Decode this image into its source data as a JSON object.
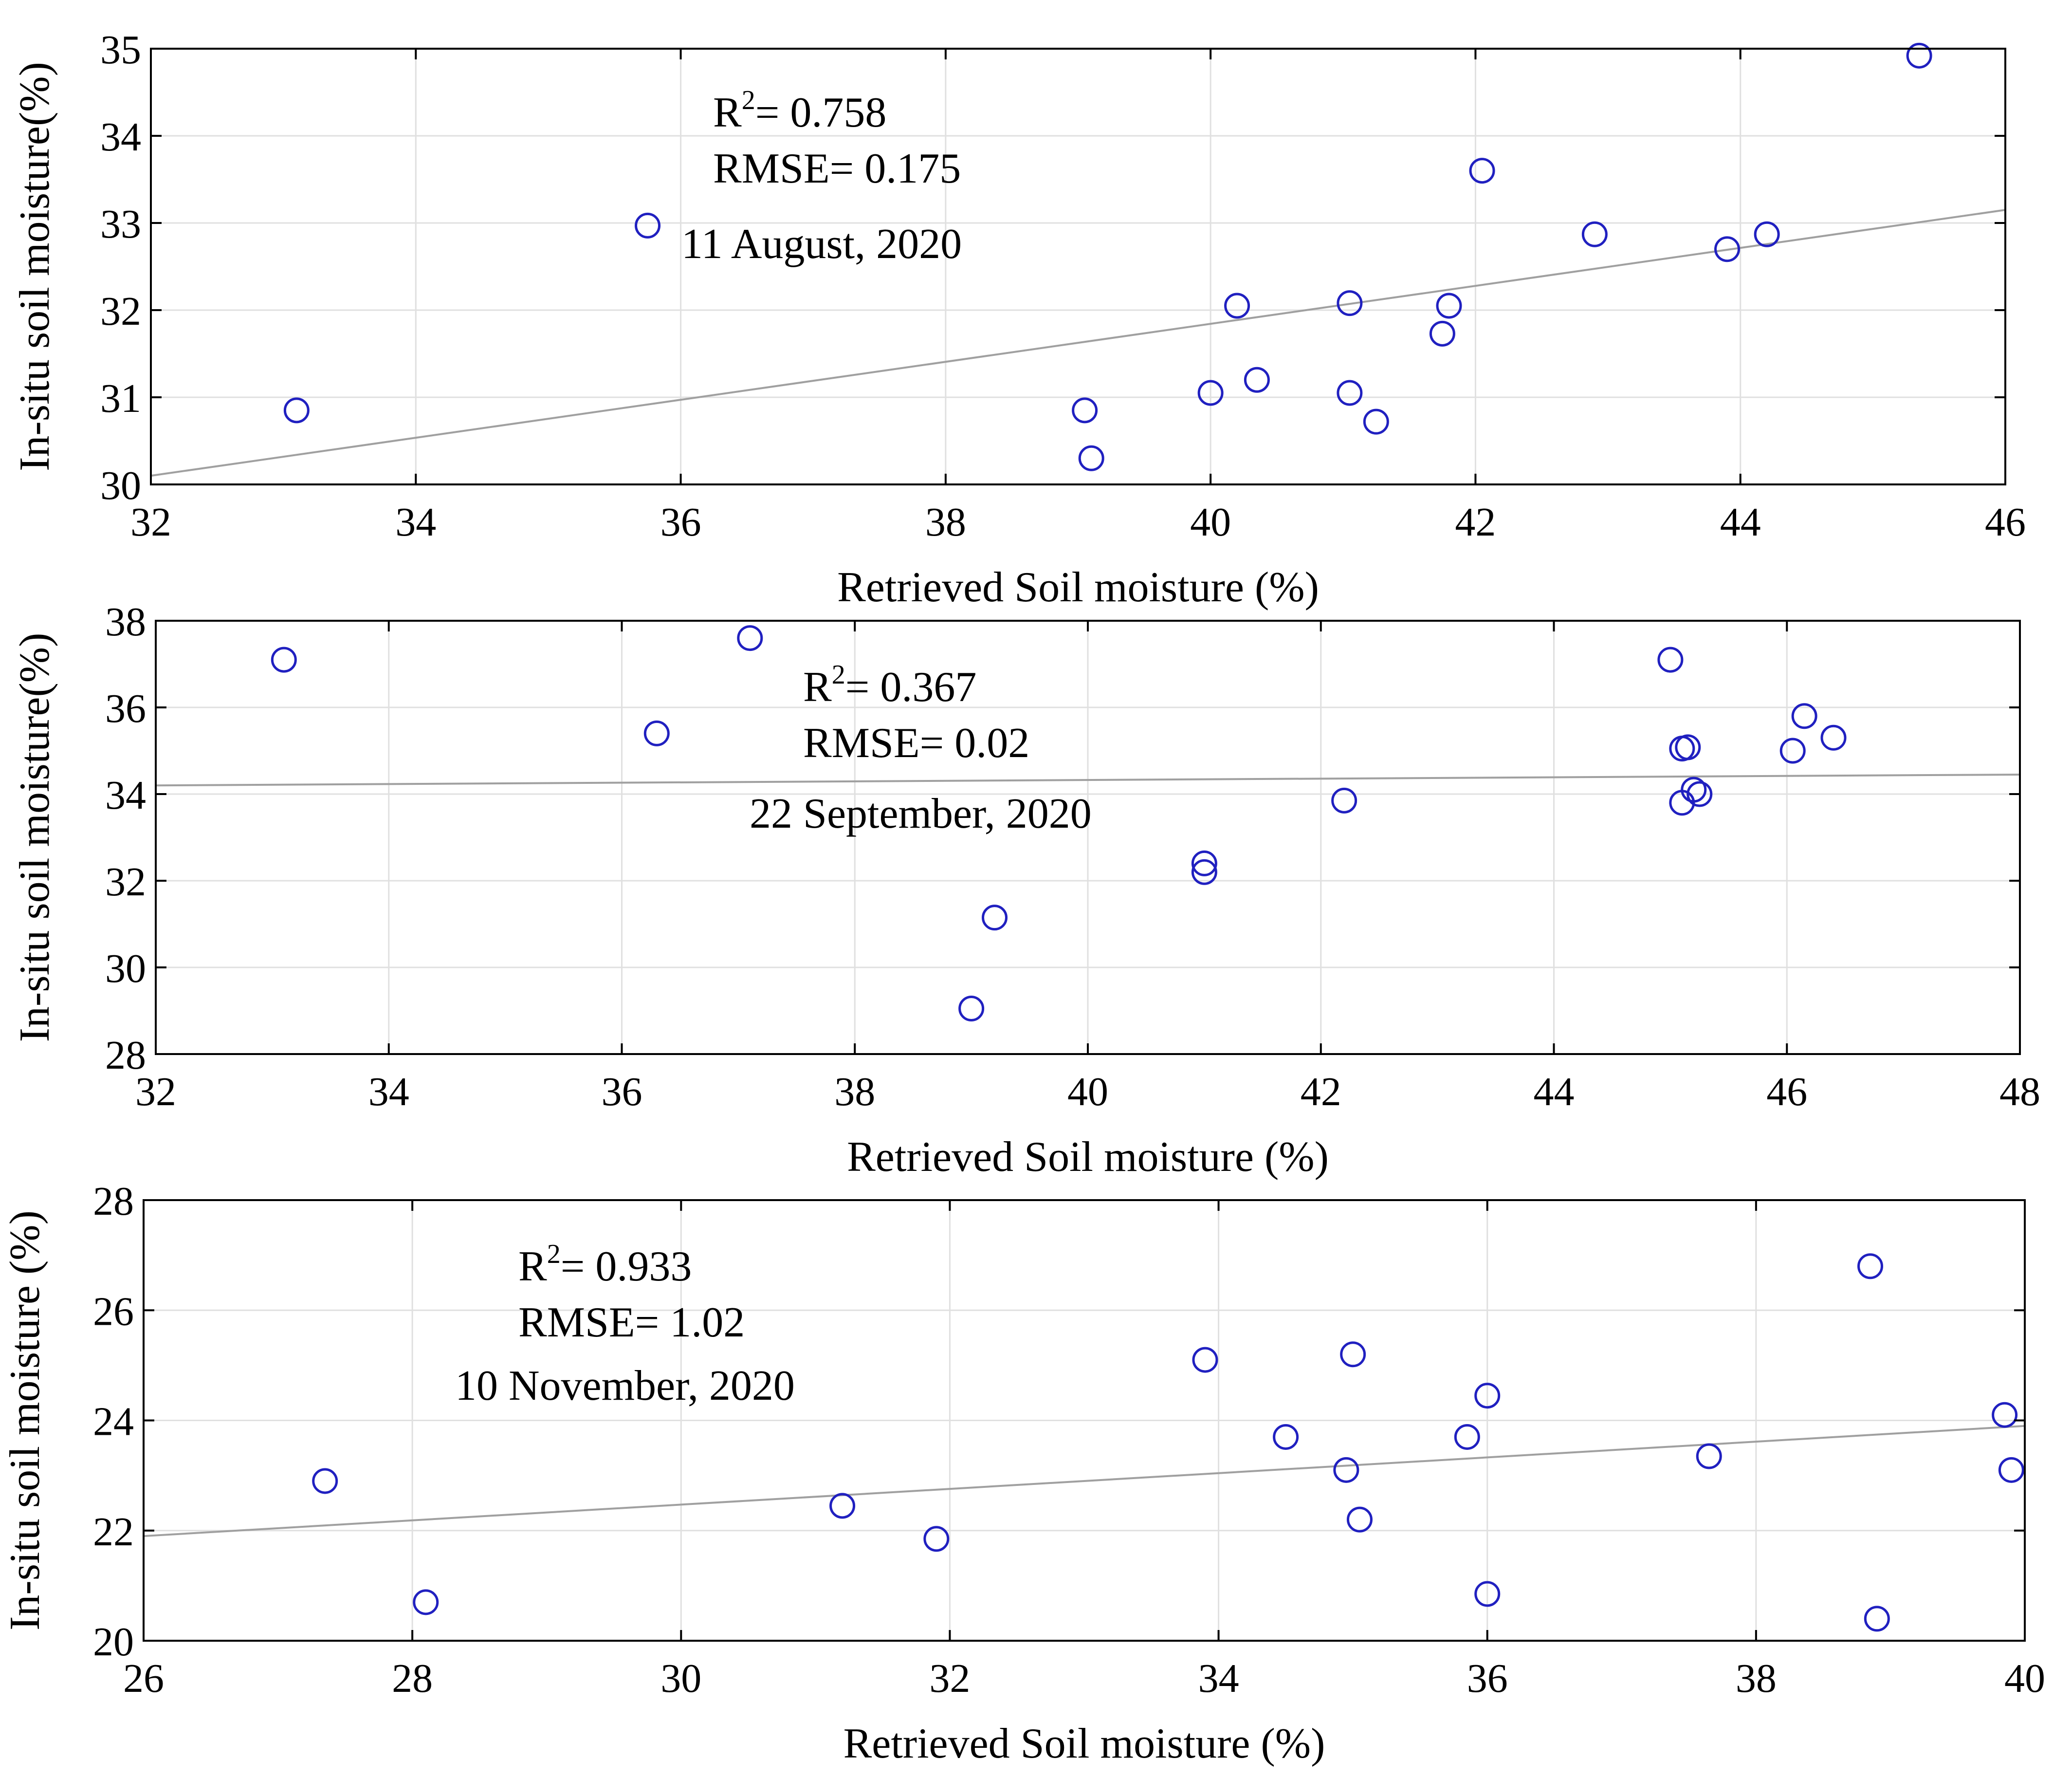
{
  "colors": {
    "marker": "#2020c0",
    "fit_line": "#a0a0a0",
    "grid": "#e0e0e0",
    "axis": "#000000"
  },
  "chart_data": [
    {
      "type": "scatter",
      "xlabel": "Retrieved Soil moisture (%)",
      "ylabel": "In-situ soil moisture(%)",
      "xlim": [
        32,
        46
      ],
      "ylim": [
        30,
        35
      ],
      "xticks": [
        32,
        34,
        36,
        38,
        40,
        42,
        44,
        46
      ],
      "yticks": [
        30,
        31,
        32,
        33,
        34,
        35
      ],
      "grid": true,
      "annotations": {
        "r2_label": "R",
        "r2_sup": "2",
        "r2_value": "= 0.758",
        "rmse": "RMSE= 0.175",
        "date": "11 August, 2020"
      },
      "fit_line": {
        "x": [
          32,
          46
        ],
        "y": [
          30.1,
          33.15
        ]
      },
      "points": [
        [
          33.1,
          30.85
        ],
        [
          35.75,
          32.97
        ],
        [
          39.05,
          30.85
        ],
        [
          39.1,
          30.3
        ],
        [
          40.0,
          31.05
        ],
        [
          40.2,
          32.05
        ],
        [
          40.35,
          31.2
        ],
        [
          41.05,
          31.05
        ],
        [
          41.05,
          32.08
        ],
        [
          41.25,
          30.72
        ],
        [
          41.75,
          31.73
        ],
        [
          41.8,
          32.05
        ],
        [
          42.05,
          33.6
        ],
        [
          42.9,
          32.87
        ],
        [
          43.9,
          32.7
        ],
        [
          44.2,
          32.87
        ],
        [
          45.35,
          34.92
        ]
      ]
    },
    {
      "type": "scatter",
      "xlabel": "Retrieved Soil moisture (%)",
      "ylabel": "In-situ soil moisture(%)",
      "xlim": [
        32,
        48
      ],
      "ylim": [
        28,
        38
      ],
      "xticks": [
        32,
        34,
        36,
        38,
        40,
        42,
        44,
        46,
        48
      ],
      "yticks": [
        28,
        30,
        32,
        34,
        36,
        38
      ],
      "grid": true,
      "annotations": {
        "r2_label": "R",
        "r2_sup": "2",
        "r2_value": "= 0.367",
        "rmse": "RMSE= 0.02",
        "date": "22 September, 2020"
      },
      "fit_line": {
        "x": [
          32,
          48
        ],
        "y": [
          34.2,
          34.45
        ]
      },
      "points": [
        [
          33.1,
          37.1
        ],
        [
          36.3,
          35.4
        ],
        [
          37.1,
          37.6
        ],
        [
          39.0,
          29.05
        ],
        [
          39.2,
          31.15
        ],
        [
          41.0,
          32.4
        ],
        [
          41.0,
          32.2
        ],
        [
          42.2,
          33.85
        ],
        [
          45.0,
          37.1
        ],
        [
          45.1,
          33.8
        ],
        [
          45.1,
          35.05
        ],
        [
          45.15,
          35.08
        ],
        [
          45.2,
          34.1
        ],
        [
          45.25,
          34.0
        ],
        [
          46.05,
          35.0
        ],
        [
          46.15,
          35.8
        ],
        [
          46.4,
          35.3
        ]
      ]
    },
    {
      "type": "scatter",
      "xlabel": "Retrieved Soil moisture (%)",
      "ylabel": "In-situ soil moisture (%)",
      "xlim": [
        26,
        40
      ],
      "ylim": [
        20,
        28
      ],
      "xticks": [
        26,
        28,
        30,
        32,
        34,
        36,
        38,
        40
      ],
      "yticks": [
        20,
        22,
        24,
        26,
        28
      ],
      "grid": true,
      "annotations": {
        "r2_label": "R",
        "r2_sup": "2",
        "r2_value": "= 0.933",
        "rmse": "RMSE= 1.02",
        "date": "10 November, 2020"
      },
      "fit_line": {
        "x": [
          26,
          40
        ],
        "y": [
          21.9,
          23.9
        ]
      },
      "points": [
        [
          27.35,
          22.9
        ],
        [
          28.1,
          20.7
        ],
        [
          31.2,
          22.45
        ],
        [
          31.9,
          21.85
        ],
        [
          33.9,
          25.1
        ],
        [
          34.5,
          23.7
        ],
        [
          34.95,
          23.1
        ],
        [
          35.0,
          25.2
        ],
        [
          35.05,
          22.2
        ],
        [
          35.85,
          23.7
        ],
        [
          36.0,
          24.45
        ],
        [
          36.0,
          20.85
        ],
        [
          37.65,
          23.35
        ],
        [
          38.85,
          26.8
        ],
        [
          38.9,
          20.4
        ],
        [
          39.85,
          24.1
        ],
        [
          39.9,
          23.1
        ]
      ]
    }
  ]
}
